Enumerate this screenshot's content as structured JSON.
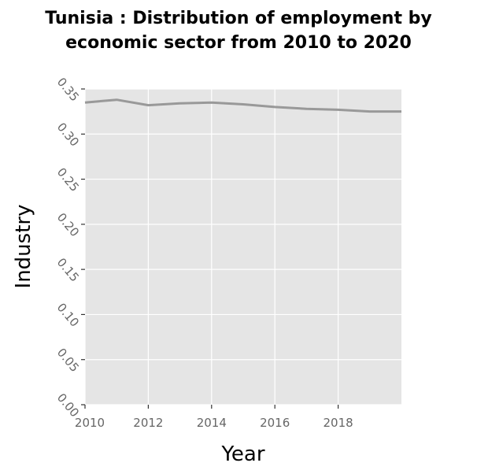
{
  "chart_data": {
    "type": "line",
    "title_lines": [
      "Tunisia : Distribution of employment by",
      "economic sector from 2010 to 2020"
    ],
    "xlabel": "Year",
    "ylabel": "Industry",
    "xlim": [
      2010,
      2020
    ],
    "ylim": [
      0,
      0.35
    ],
    "x_ticks": [
      2010,
      2012,
      2014,
      2016,
      2018
    ],
    "x_tick_labels": [
      "2010",
      "2012",
      "2014",
      "2016",
      "2018"
    ],
    "y_ticks": [
      0,
      0.05,
      0.1,
      0.15,
      0.2,
      0.25,
      0.3,
      0.35
    ],
    "y_tick_labels": [
      "0.00",
      "0.05",
      "0.10",
      "0.15",
      "0.20",
      "0.25",
      "0.30",
      "0.35"
    ],
    "grid": true,
    "colors": {
      "panel": "#e5e5e5",
      "grid": "#ffffff",
      "line": "#999999"
    },
    "series": [
      {
        "x": [
          2010,
          2011,
          2012,
          2013,
          2014,
          2015,
          2016,
          2017,
          2018,
          2019,
          2020
        ],
        "values": [
          0.335,
          0.338,
          0.332,
          0.334,
          0.335,
          0.333,
          0.33,
          0.328,
          0.327,
          0.325,
          0.325
        ]
      }
    ]
  }
}
